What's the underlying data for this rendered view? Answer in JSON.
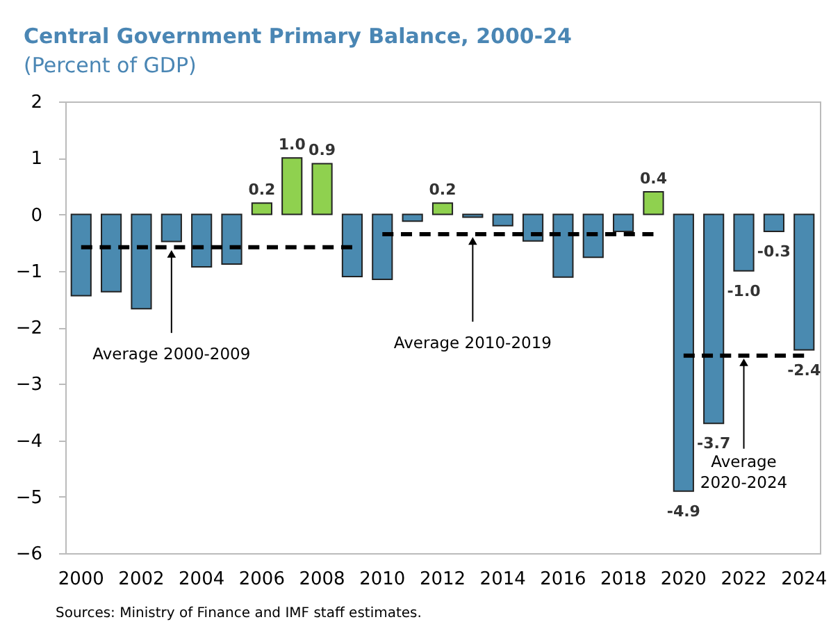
{
  "chart_data": {
    "type": "bar",
    "title": "Central Government Primary Balance, 2000-24",
    "subtitle": "(Percent of GDP)",
    "categories": [
      "2000",
      null,
      "2002",
      null,
      "2004",
      null,
      "2006",
      null,
      "2008",
      null,
      "2010",
      null,
      "2012",
      null,
      "2014",
      null,
      "2016",
      null,
      "2018",
      null,
      "2020",
      null,
      "2022",
      null,
      "2024"
    ],
    "values": [
      -1.44,
      -1.37,
      -1.67,
      -0.48,
      -0.93,
      -0.88,
      0.2,
      1.0,
      0.9,
      -1.1,
      -1.15,
      -0.12,
      0.2,
      -0.05,
      -0.2,
      -0.47,
      -1.11,
      -0.76,
      -0.3,
      0.4,
      -4.9,
      -3.7,
      -1.0,
      -0.3,
      -2.4
    ],
    "colors": [
      "#4a8ab0",
      "#4a8ab0",
      "#4a8ab0",
      "#4a8ab0",
      "#4a8ab0",
      "#4a8ab0",
      "#8fd14f",
      "#8fd14f",
      "#8fd14f",
      "#4a8ab0",
      "#4a8ab0",
      "#4a8ab0",
      "#8fd14f",
      "#4a8ab0",
      "#4a8ab0",
      "#4a8ab0",
      "#4a8ab0",
      "#4a8ab0",
      "#4a8ab0",
      "#8fd14f",
      "#4a8ab0",
      "#4a8ab0",
      "#4a8ab0",
      "#4a8ab0",
      "#4a8ab0"
    ],
    "value_labels": [
      null,
      null,
      null,
      null,
      null,
      null,
      "0.2",
      "1.0",
      "0.9",
      null,
      null,
      null,
      "0.2",
      null,
      null,
      null,
      null,
      null,
      null,
      "0.4",
      "-4.9",
      "-3.7",
      "-1.0",
      "-0.3",
      "-2.4"
    ],
    "series": [
      {
        "type": "line",
        "color": "#000000",
        "line_style": "dashed",
        "values": [
          -0.58,
          -0.58,
          -0.58,
          -0.58,
          -0.58,
          -0.58,
          -0.58,
          -0.58,
          -0.58,
          -0.58,
          null,
          null,
          null,
          null,
          null,
          null,
          null,
          null,
          null,
          null,
          null,
          null,
          null,
          null,
          null
        ]
      },
      {
        "type": "line",
        "color": "#000000",
        "line_style": "dashed",
        "values": [
          null,
          null,
          null,
          null,
          null,
          null,
          null,
          null,
          null,
          null,
          -0.35,
          -0.35,
          -0.35,
          -0.35,
          -0.35,
          -0.35,
          -0.35,
          -0.35,
          -0.35,
          -0.35,
          null,
          null,
          null,
          null,
          null
        ]
      },
      {
        "type": "line",
        "color": "#000000",
        "line_style": "dashed",
        "values": [
          null,
          null,
          null,
          null,
          null,
          null,
          null,
          null,
          null,
          null,
          null,
          null,
          null,
          null,
          null,
          null,
          null,
          null,
          null,
          null,
          -2.5,
          -2.5,
          -2.5,
          -2.5,
          -2.5
        ]
      }
    ],
    "ylim": [
      -6,
      2
    ],
    "yticks": [
      -6,
      -5,
      -4,
      -3,
      -2,
      -1,
      0,
      1,
      2
    ],
    "grid": false,
    "annotations": [
      {
        "text": "Average 2000-2009",
        "y": -0.58
      },
      {
        "text": "Average 2010-2019",
        "y": -0.35
      },
      {
        "text": "Average 2020-2024",
        "y": -2.5
      },
      "Sources: Ministry of Finance and IMF staff estimates."
    ]
  }
}
